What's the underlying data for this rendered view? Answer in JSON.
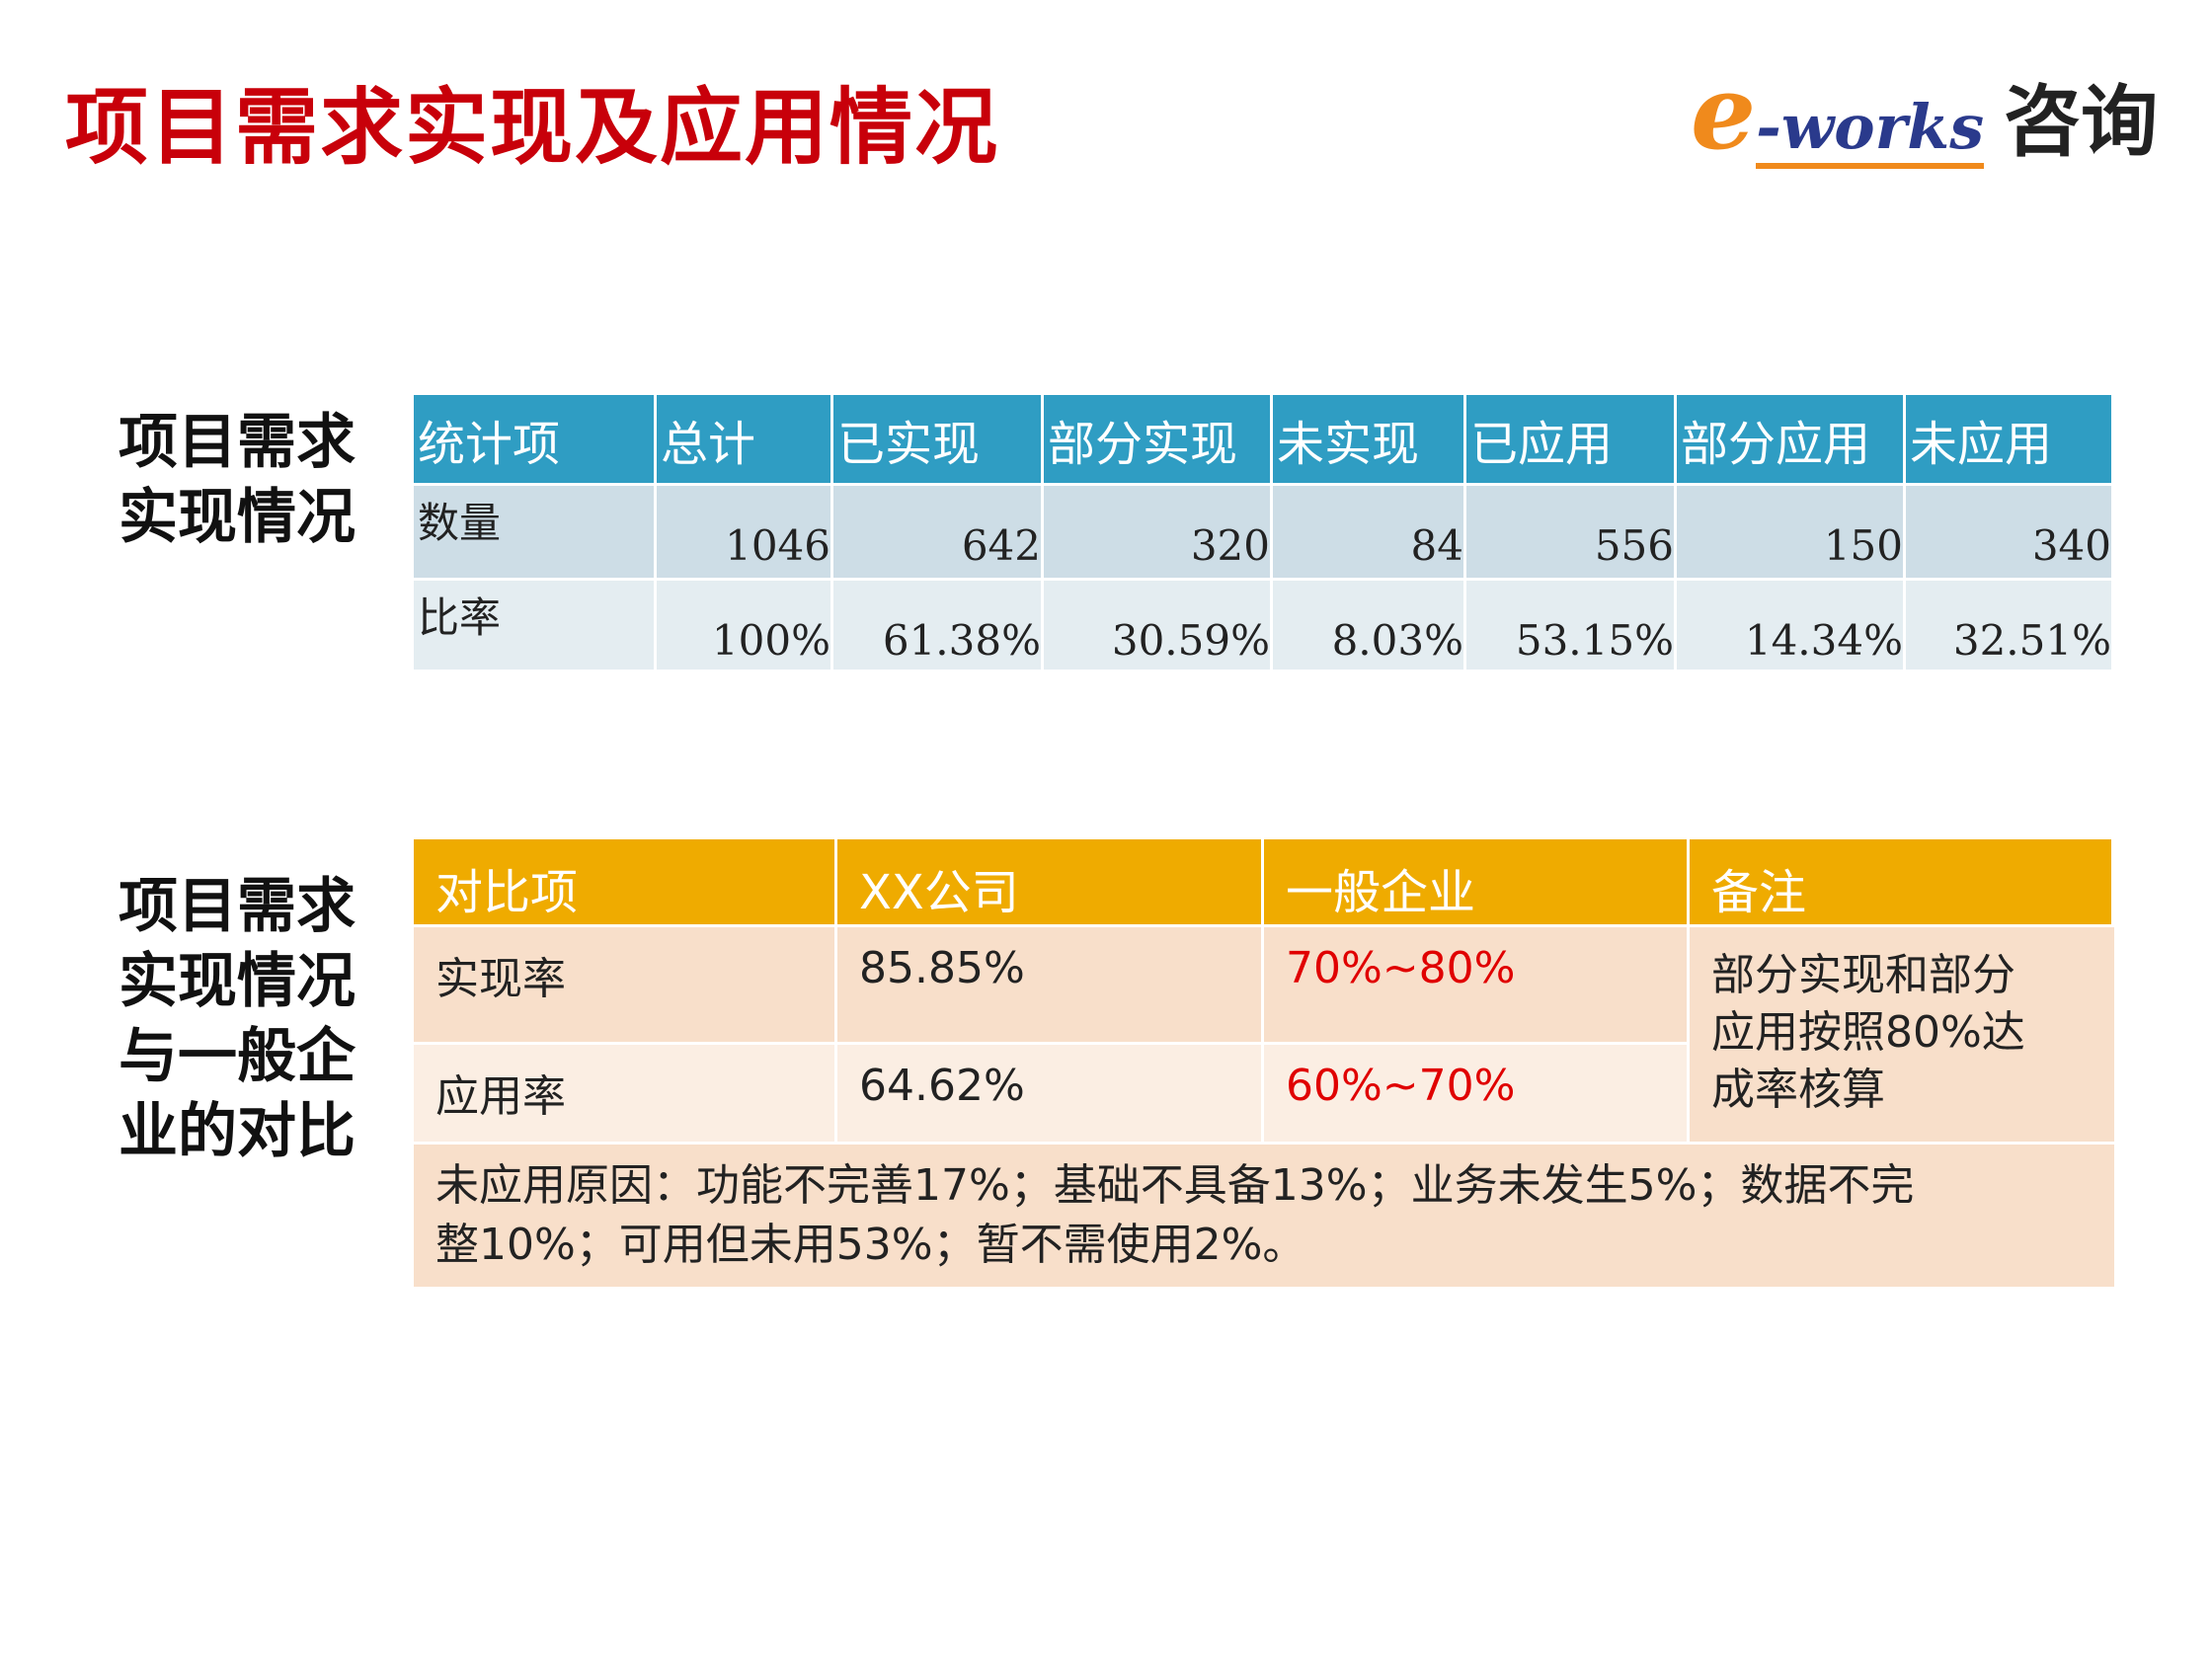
{
  "header": {
    "title": "项目需求实现及应用情况",
    "logo": {
      "mark": "e",
      "brand": "-works",
      "suffix": "咨询"
    }
  },
  "section1": {
    "label": [
      "项目需求",
      "实现情况"
    ],
    "table": {
      "header": [
        "统计项",
        "总计",
        "已实现",
        "部分实现",
        "未实现",
        "已应用",
        "部分应用",
        "未应用"
      ],
      "rows": [
        [
          "数量",
          "1046",
          "642",
          "320",
          "84",
          "556",
          "150",
          "340"
        ],
        [
          "比率",
          "100%",
          "61.38%",
          "30.59%",
          "8.03%",
          "53.15%",
          "14.34%",
          "32.51%"
        ]
      ]
    }
  },
  "section2": {
    "label": [
      "项目需求",
      "实现情况",
      "与一般企",
      "业的对比"
    ],
    "table": {
      "header": [
        "对比项",
        "XX公司",
        "一般企业",
        "备注"
      ],
      "rows": [
        [
          "实现率",
          "85.85%",
          "70%~80%"
        ],
        [
          "应用率",
          "64.62%",
          "60%~70%"
        ]
      ],
      "note": [
        "部分实现和部分",
        "应用按照80%达",
        "成率核算"
      ],
      "footer": [
        "未应用原因：功能不完善17%；基础不具备13%；业务未发生5%；数据不完",
        "整10%；可用但未用53%；暂不需使用2%。"
      ]
    }
  }
}
